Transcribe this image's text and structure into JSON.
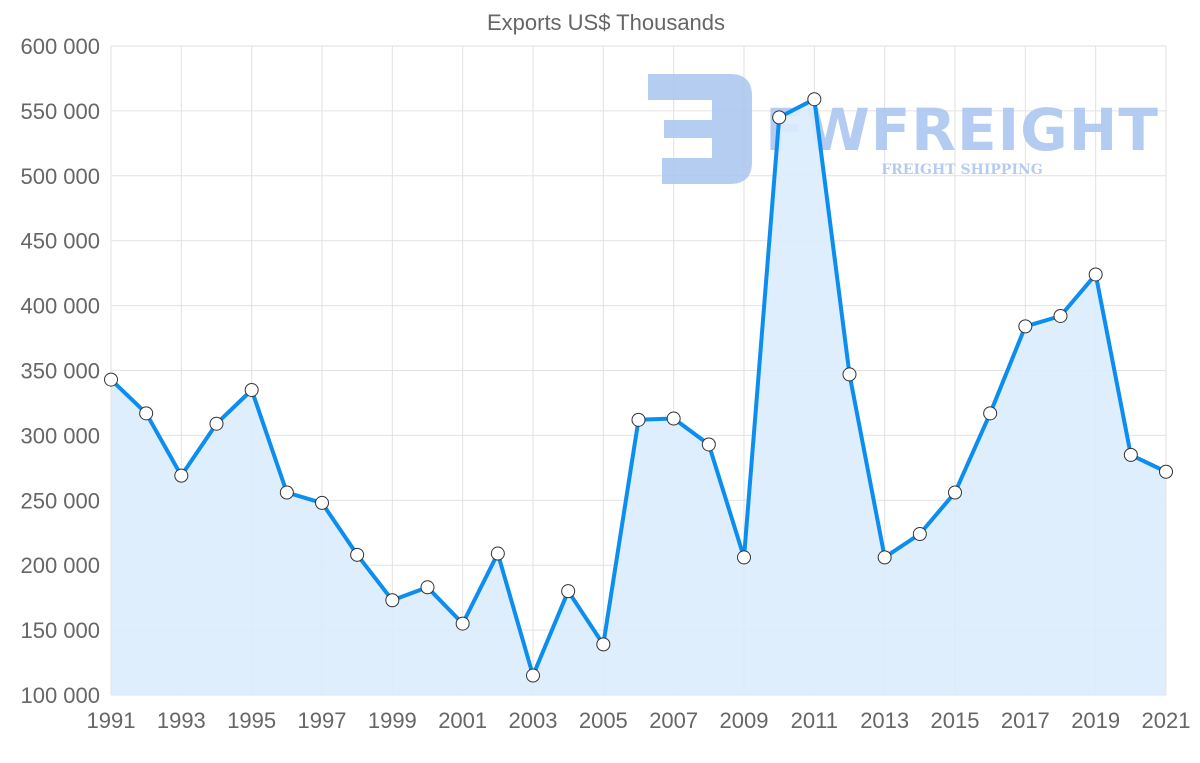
{
  "chart_data": {
    "type": "line",
    "title": "Exports US$ Thousands",
    "xlabel": "",
    "ylabel": "",
    "x": [
      1991,
      1992,
      1993,
      1994,
      1995,
      1996,
      1997,
      1998,
      1999,
      2000,
      2001,
      2002,
      2003,
      2004,
      2005,
      2006,
      2007,
      2008,
      2009,
      2010,
      2011,
      2012,
      2013,
      2014,
      2015,
      2016,
      2017,
      2018,
      2019,
      2020,
      2021
    ],
    "series": [
      {
        "name": "Exports US$ Thousands",
        "values": [
          343000,
          317000,
          269000,
          309000,
          335000,
          256000,
          248000,
          208000,
          173000,
          183000,
          155000,
          209000,
          115000,
          180000,
          139000,
          312000,
          313000,
          293000,
          206000,
          545000,
          559000,
          347000,
          206000,
          224000,
          256000,
          317000,
          384000,
          392000,
          424000,
          285000,
          272000
        ],
        "color": "#0b8ef0",
        "fill": "#dbecfc"
      }
    ],
    "ylim": [
      100000,
      600000
    ],
    "yticks": [
      "100 000",
      "150 000",
      "200 000",
      "250 000",
      "300 000",
      "350 000",
      "400 000",
      "450 000",
      "500 000",
      "550 000",
      "600 000"
    ],
    "xticks": [
      "1991",
      "1993",
      "1995",
      "1997",
      "1999",
      "2001",
      "2003",
      "2005",
      "2007",
      "2009",
      "2011",
      "2013",
      "2015",
      "2017",
      "2019",
      "2021"
    ],
    "grid": true,
    "legend": "none"
  },
  "watermark": {
    "brand": "FWFREIGHT",
    "tagline": "FREIGHT SHIPPING",
    "color": "#a9c4f0"
  }
}
